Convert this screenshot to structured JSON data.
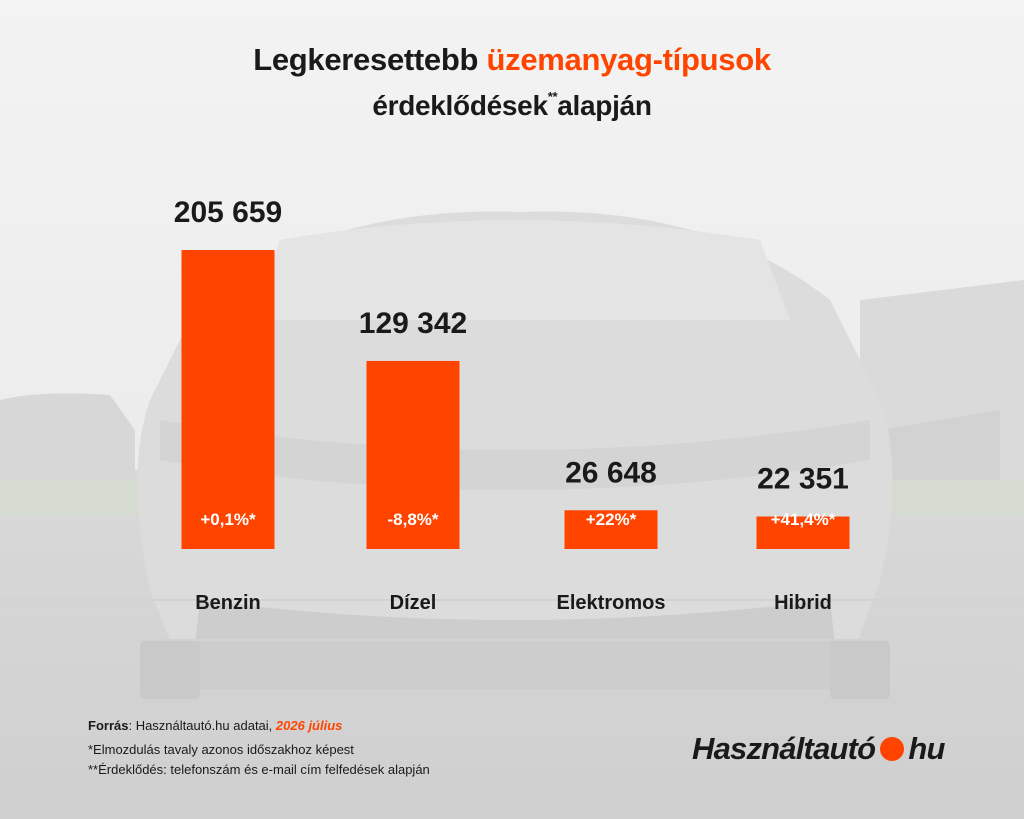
{
  "title": {
    "line1_prefix": "Legkeresettebb",
    "line1_accent": "üzemanyag-típusok",
    "line2_main": "érdeklődések",
    "line2_sup": "**",
    "line2_suffix": "alapján"
  },
  "colors": {
    "accent": "#ff4400",
    "bar": "#ff4400",
    "text": "#1a1a1a",
    "bar_label": "#ffffff"
  },
  "chart_data": {
    "type": "bar",
    "title": "Legkeresettebb üzemanyag-típusok érdeklődések** alapján",
    "categories": [
      "Benzin",
      "Dízel",
      "Elektromos",
      "Hibrid"
    ],
    "values": [
      205659,
      129342,
      26648,
      22351
    ],
    "value_labels": [
      "205 659",
      "129 342",
      "26 648",
      "22 351"
    ],
    "change_labels": [
      "+0,1%*",
      "-8,8%*",
      "+22%*",
      "+41,4%*"
    ],
    "xlabel": "",
    "ylabel": "",
    "grid": false
  },
  "footer": {
    "source_label": "Forrás",
    "source_text": ": Használtautó.hu adatai, ",
    "source_date": "2026 július",
    "note1": "*Elmozdulás tavaly azonos időszakhoz képest",
    "note2": "**Érdeklődés: telefonszám és e-mail cím felfedések alapján"
  },
  "logo": {
    "text_left": "Használtautó",
    "text_right": "hu"
  }
}
